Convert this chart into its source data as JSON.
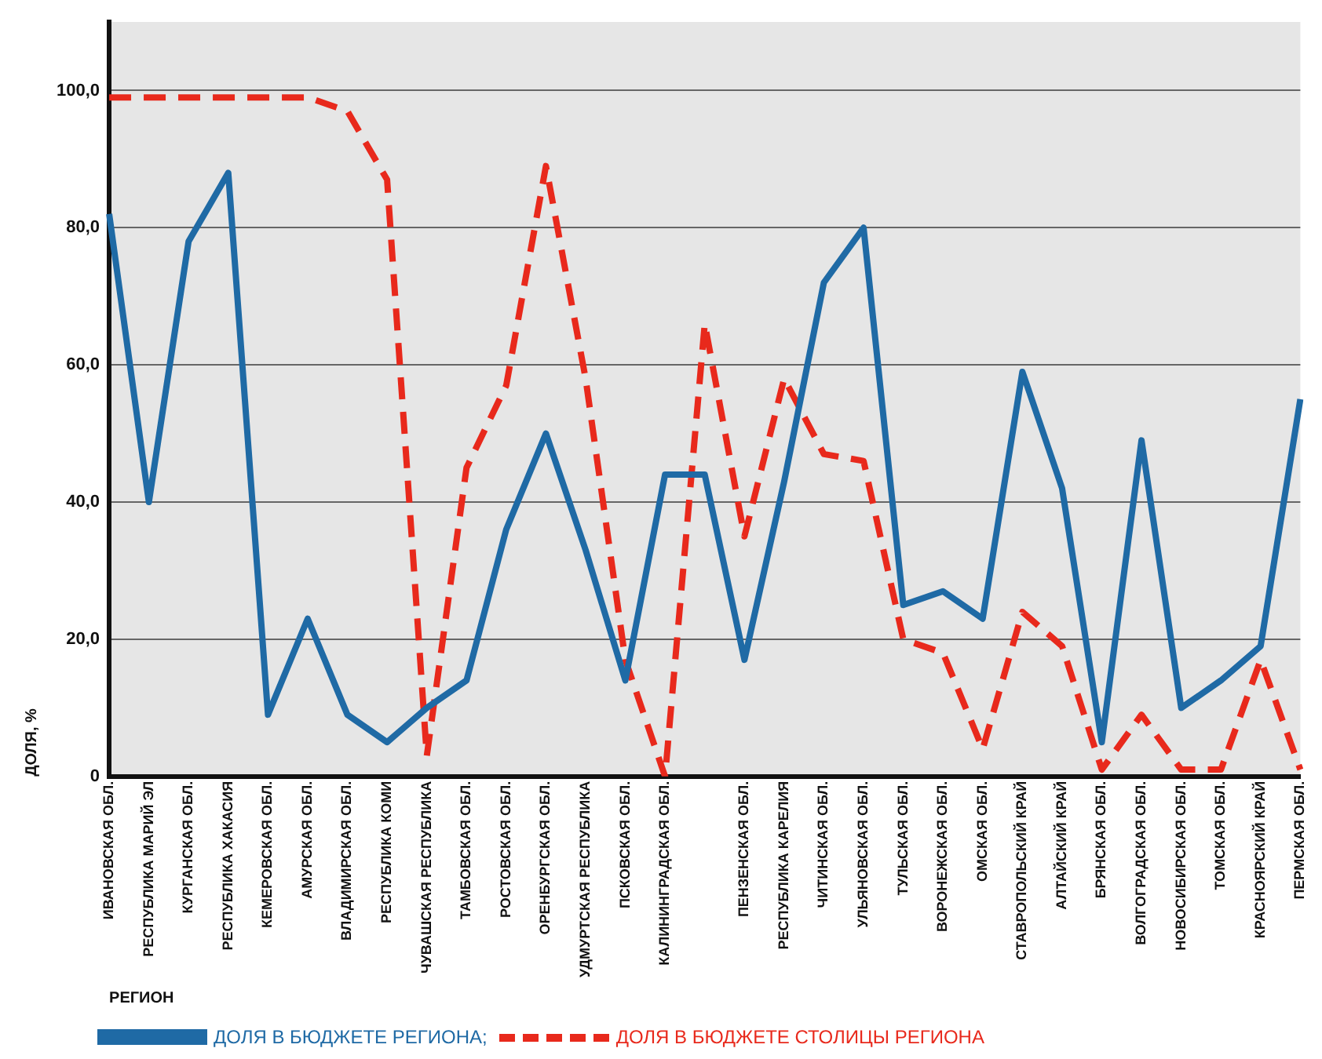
{
  "chart_data": {
    "type": "line",
    "ylabel": "ДОЛЯ, %",
    "xlabel": "РЕГИОН",
    "categories": [
      "ИВАНОВСКАЯ ОБЛ.",
      "РЕСПУБЛИКА МАРИЙ ЭЛ",
      "КУРГАНСКАЯ ОБЛ.",
      "РЕСПУБЛИКА ХАКАСИЯ",
      "КЕМЕРОВСКАЯ ОБЛ.",
      "АМУРСКАЯ ОБЛ.",
      "ВЛАДИМИРСКАЯ ОБЛ.",
      "РЕСПУБЛИКА КОМИ",
      "ЧУВАШСКАЯ РЕСПУБЛИКА",
      "ТАМБОВСКАЯ ОБЛ.",
      "РОСТОВСКАЯ ОБЛ.",
      "ОРЕНБУРГСКАЯ ОБЛ.",
      "УДМУРТСКАЯ РЕСПУБЛИКА",
      "ПСКОВСКАЯ ОБЛ.",
      "КАЛИНИНГРАДСКАЯ ОБЛ.",
      null,
      "ПЕНЗЕНСКАЯ ОБЛ.",
      "РЕСПУБЛИКА КАРЕЛИЯ",
      "ЧИТИНСКАЯ ОБЛ.",
      "УЛЬЯНОВСКАЯ ОБЛ.",
      "ТУЛЬСКАЯ ОБЛ.",
      "ВОРОНЕЖСКАЯ ОБЛ.",
      "ОМСКАЯ ОБЛ.",
      "СТАВРОПОЛЬСКИЙ КРАЙ",
      "АЛТАЙСКИЙ КРАЙ",
      "БРЯНСКАЯ ОБЛ.",
      "ВОЛГОГРАДСКАЯ ОБЛ.",
      "НОВОСИБИРСКАЯ ОБЛ.",
      "ТОМСКАЯ ОБЛ.",
      "КРАСНОЯРСКИЙ КРАЙ",
      "ПЕРМСКАЯ ОБЛ."
    ],
    "series": [
      {
        "name": "ДОЛЯ В БЮДЖЕТЕ РЕГИОНА;",
        "color": "#1f6aa5",
        "line_style": "solid",
        "values": [
          82,
          40,
          78,
          88,
          9,
          23,
          9,
          5,
          10,
          14,
          36,
          50,
          33,
          14,
          44,
          44,
          17,
          43,
          72,
          80,
          25,
          27,
          23,
          59,
          42,
          5,
          49,
          10,
          14,
          19,
          55
        ]
      },
      {
        "name": "ДОЛЯ В БЮДЖЕТЕ СТОЛИЦЫ РЕГИОНА",
        "color": "#e8291c",
        "line_style": "dashed",
        "values": [
          99,
          99,
          99,
          99,
          99,
          99,
          97,
          87,
          3,
          45,
          57,
          89,
          58,
          17,
          0,
          66,
          35,
          58,
          47,
          46,
          20,
          18,
          4,
          24,
          19,
          1,
          9,
          1,
          1,
          17,
          1
        ]
      }
    ],
    "ylim": [
      0,
      110
    ],
    "yticks": [
      0,
      {
        "value": 20,
        "label": "20,0"
      },
      {
        "value": 40,
        "label": "40,0"
      },
      {
        "value": 60,
        "label": "60,0"
      },
      {
        "value": 80,
        "label": "80,0"
      },
      {
        "value": 100,
        "label": "100,0"
      }
    ],
    "grid": "y",
    "legend": "bottom",
    "marker": "none"
  }
}
